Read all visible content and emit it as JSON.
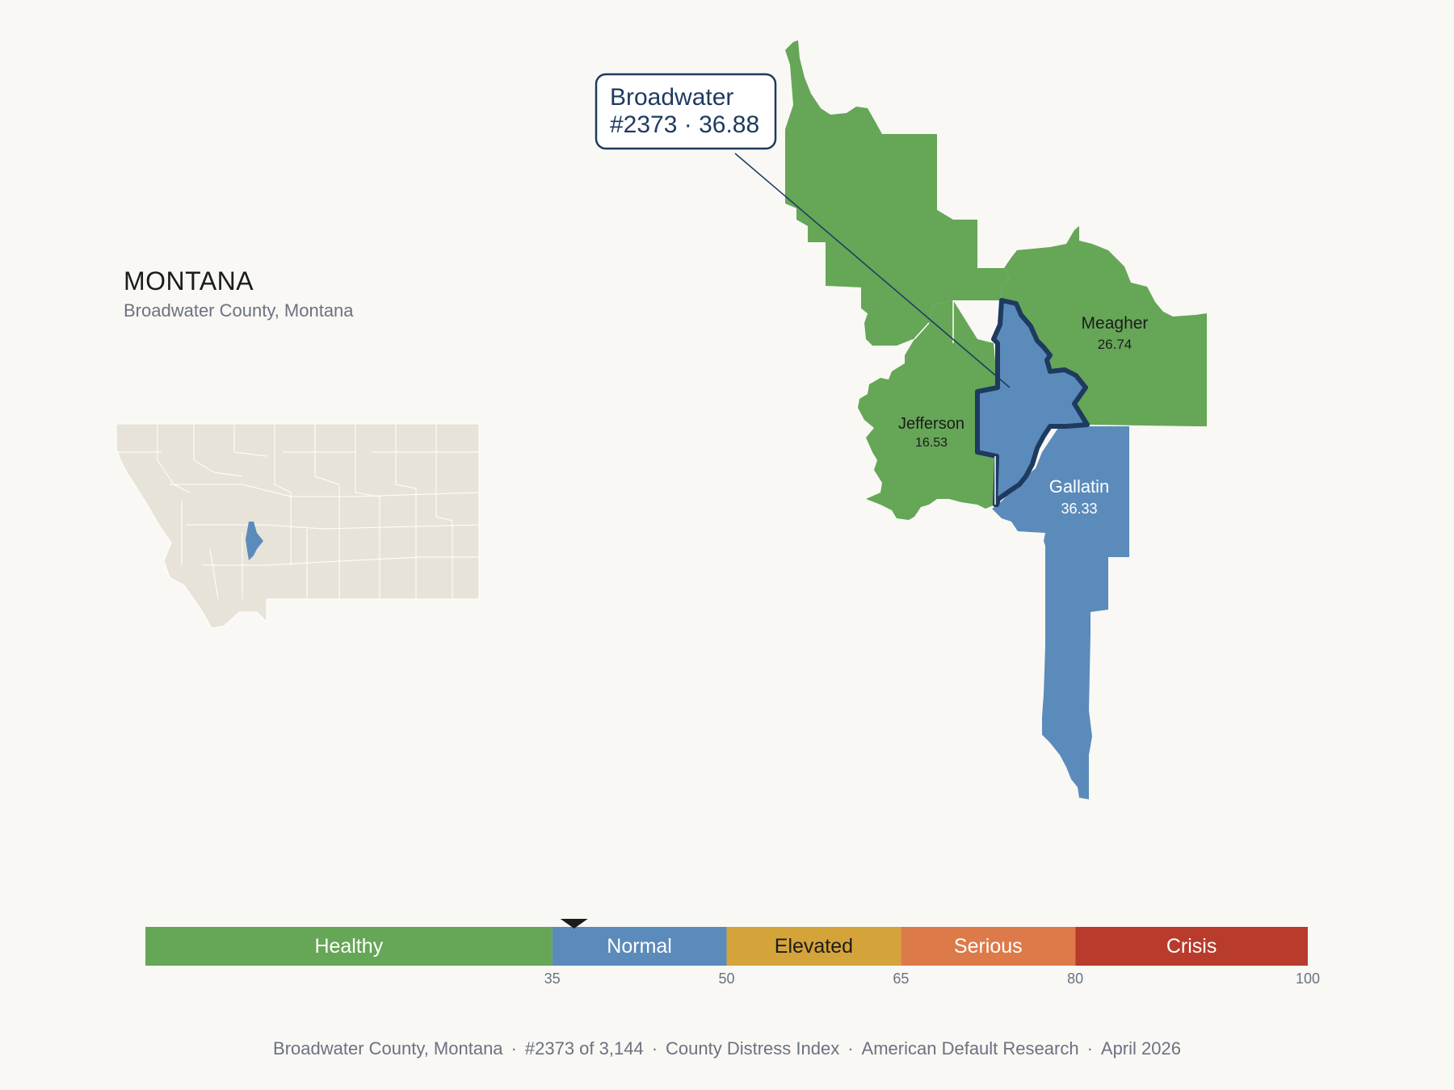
{
  "state": {
    "title": "MONTANA",
    "subtitle": "Broadwater County, Montana"
  },
  "callout": {
    "county": "Broadwater",
    "rank_score": "#2373 · 36.88"
  },
  "counties": [
    {
      "name": "Meagher",
      "score": "26.74",
      "category": "Healthy"
    },
    {
      "name": "Jefferson",
      "score": "16.53",
      "category": "Healthy"
    },
    {
      "name": "Gallatin",
      "score": "36.33",
      "category": "Normal"
    },
    {
      "name": "Broadwater",
      "score": "36.88",
      "category": "Normal",
      "highlighted": true
    }
  ],
  "scale": {
    "min": 0,
    "max": 100,
    "marker_value": 36.88,
    "bands": [
      {
        "label": "Healthy",
        "from": 0,
        "to": 35,
        "color": "#66a657",
        "text_color": "#ffffff"
      },
      {
        "label": "Normal",
        "from": 35,
        "to": 50,
        "color": "#5b8bba",
        "text_color": "#ffffff"
      },
      {
        "label": "Elevated",
        "from": 50,
        "to": 65,
        "color": "#d4a33a",
        "text_color": "#1c1c1c"
      },
      {
        "label": "Serious",
        "from": 65,
        "to": 80,
        "color": "#dc7a4a",
        "text_color": "#ffffff"
      },
      {
        "label": "Crisis",
        "from": 80,
        "to": 100,
        "color": "#b83b2c",
        "text_color": "#ffffff"
      }
    ],
    "ticks": [
      "35",
      "50",
      "65",
      "80",
      "100"
    ]
  },
  "footer": {
    "items": [
      "Broadwater County, Montana",
      "#2373 of 3,144",
      "County Distress Index",
      "American Default Research",
      "April 2026"
    ]
  },
  "colors": {
    "healthy": "#66a657",
    "normal": "#5b8bba",
    "highlight_outline": "#1e3a5f",
    "inset_fill": "#e8e3d8",
    "background": "#f9f8f5"
  }
}
